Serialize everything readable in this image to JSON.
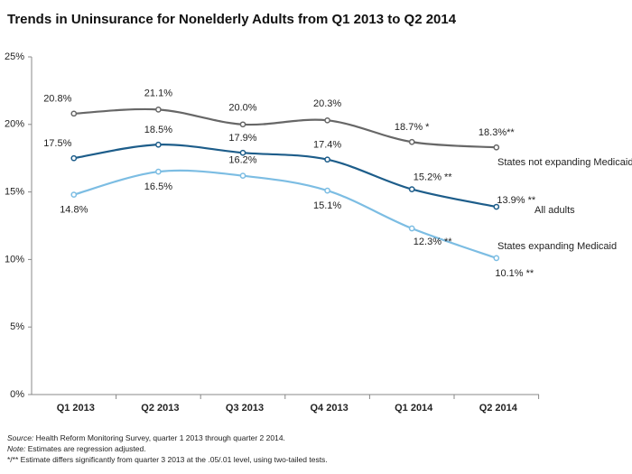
{
  "chart_data": {
    "type": "line",
    "title": "Trends in Uninsurance for Nonelderly Adults from Q1 2013 to Q2 2014",
    "categories": [
      "Q1 2013",
      "Q2 2013",
      "Q3 2013",
      "Q4 2013",
      "Q1 2014",
      "Q2 2014"
    ],
    "series": [
      {
        "name": "States not expanding Medicaid",
        "color": "#676767",
        "values": [
          20.8,
          21.1,
          20.0,
          20.3,
          18.7,
          18.3
        ],
        "value_labels": [
          "20.8%",
          "21.1%",
          "20.0%",
          "20.3%",
          "18.7% *",
          "18.3%**"
        ]
      },
      {
        "name": "All adults",
        "color": "#1d5d8a",
        "values": [
          17.5,
          18.5,
          17.9,
          17.4,
          15.2,
          13.9
        ],
        "value_labels": [
          "17.5%",
          "18.5%",
          "17.9%",
          "17.4%",
          "15.2% **",
          "13.9% **"
        ]
      },
      {
        "name": "States expanding Medicaid",
        "color": "#7cbde3",
        "values": [
          14.8,
          16.5,
          16.2,
          15.1,
          12.3,
          10.1
        ],
        "value_labels": [
          "14.8%",
          "16.5%",
          "16.2%",
          "15.1%",
          "12.3% **",
          "10.1% **"
        ]
      }
    ],
    "ylim": [
      0,
      25
    ],
    "yticks": [
      {
        "value": 0,
        "label": "0%"
      },
      {
        "value": 5,
        "label": "5%"
      },
      {
        "value": 10,
        "label": "10%"
      },
      {
        "value": 15,
        "label": "15%"
      },
      {
        "value": 20,
        "label": "20%"
      },
      {
        "value": 25,
        "label": "25%"
      }
    ],
    "grid": false,
    "notes": [
      {
        "label": "Source:",
        "text": " Health Reform Monitoring Survey, quarter 1 2013 through quarter 2 2014."
      },
      {
        "label": "Note:",
        "text": " Estimates are regression adjusted."
      },
      {
        "label": "",
        "text": "*/** Estimate differs significantly from quarter 3 2013 at the .05/.01 level, using two-tailed tests."
      }
    ]
  }
}
